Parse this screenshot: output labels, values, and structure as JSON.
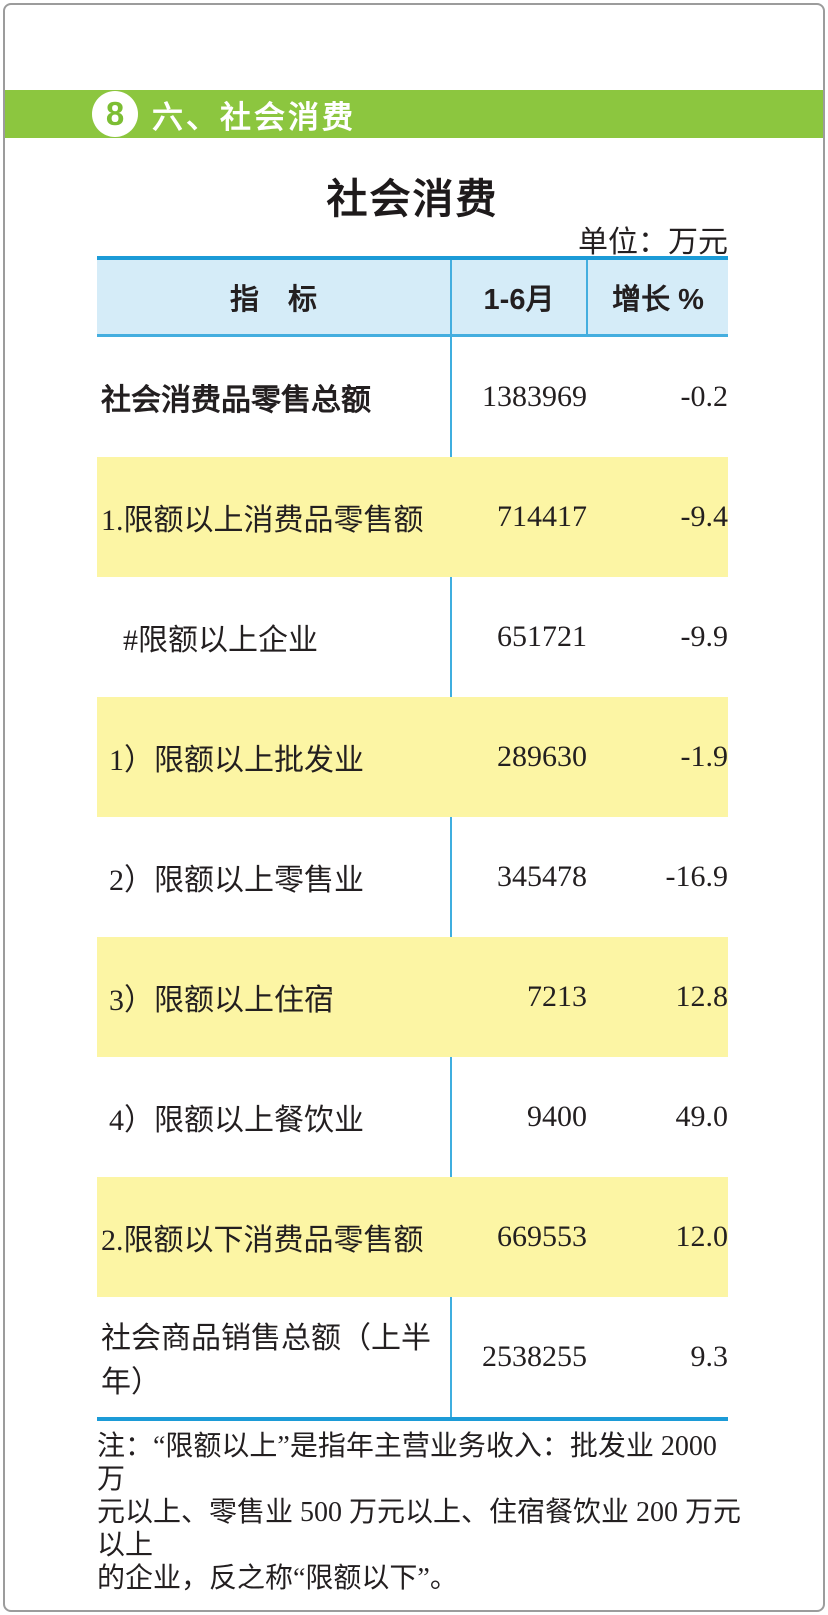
{
  "header_bar": {
    "badge": "8",
    "section": "六、社会消费"
  },
  "page": {
    "title": "社会消费",
    "unit": "单位：万元"
  },
  "table": {
    "columns": {
      "indicator": "指　标",
      "period": "1-6月",
      "growth": "增长 %"
    },
    "rows": [
      {
        "indicator": "社会消费品零售总额",
        "period": "1383969",
        "growth": "-0.2"
      },
      {
        "indicator": "1.限额以上消费品零售额",
        "period": "714417",
        "growth": "-9.4"
      },
      {
        "indicator": "#限额以上企业",
        "period": "651721",
        "growth": "-9.9"
      },
      {
        "indicator": "1）限额以上批发业",
        "period": "289630",
        "growth": "-1.9"
      },
      {
        "indicator": "2）限额以上零售业",
        "period": "345478",
        "growth": "-16.9"
      },
      {
        "indicator": "3）限额以上住宿",
        "period": "7213",
        "growth": "12.8"
      },
      {
        "indicator": "4）限额以上餐饮业",
        "period": "9400",
        "growth": "49.0"
      },
      {
        "indicator": "2.限额以下消费品零售额",
        "period": "669553",
        "growth": "12.0"
      },
      {
        "indicator": "社会商品销售总额（上半年）",
        "period": "2538255",
        "growth": "9.3"
      }
    ]
  },
  "note": {
    "lines": [
      "注：“限额以上”是指年主营业务收入：批发业 2000 万",
      "元以上、零售业 500 万元以上、住宿餐饮业 200 万元以上",
      "的企业，反之称“限额以下”。"
    ]
  },
  "colors": {
    "accent_green": "#8cc63f",
    "header_blue_bg": "#d5ecf8",
    "border_blue": "#1c9bd7",
    "divider_blue": "#3faedf",
    "row_yellow": "#fcf5a4"
  }
}
